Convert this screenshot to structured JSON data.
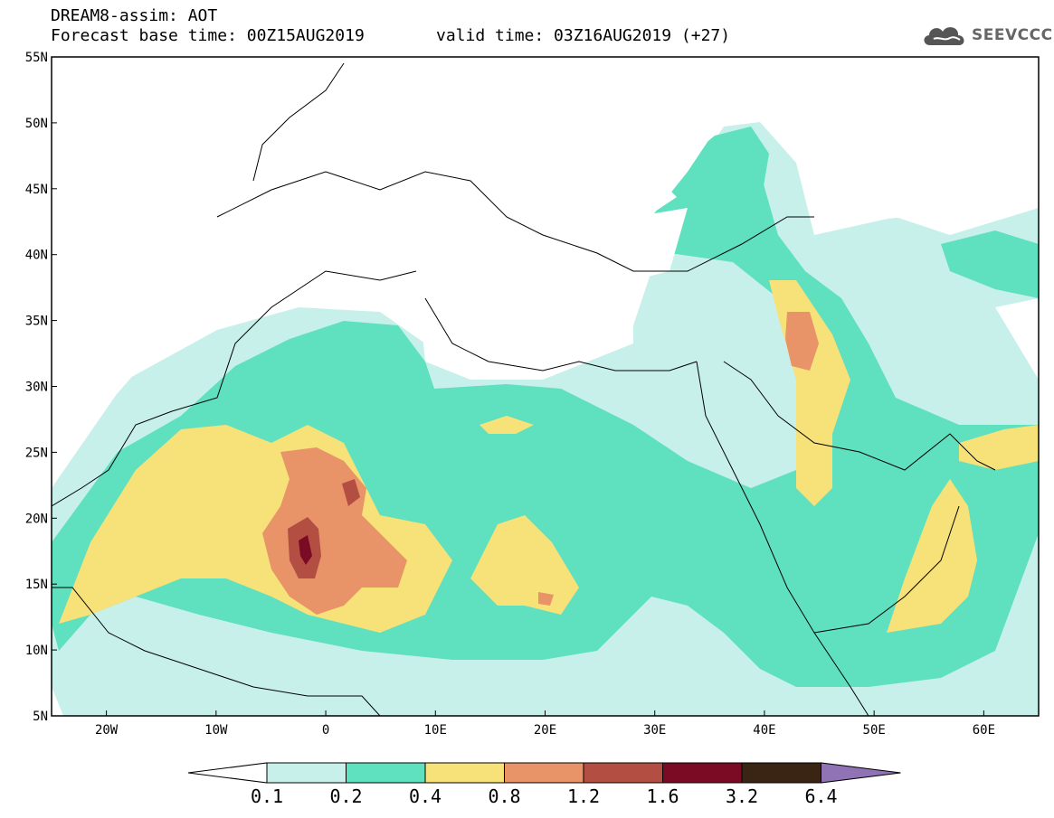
{
  "header": {
    "title_line": "DREAM8-assim: AOT",
    "base_time": "Forecast base time: 00Z15AUG2019",
    "valid_time": "valid time: 03Z16AUG2019 (+27)"
  },
  "logo": {
    "icon": "cloud-icon",
    "text": "SEEVCCC"
  },
  "map": {
    "lon_range": [
      -25,
      65
    ],
    "lat_range": [
      5,
      55
    ],
    "lat_ticks": [
      "5N",
      "10N",
      "15N",
      "20N",
      "25N",
      "30N",
      "35N",
      "40N",
      "45N",
      "50N",
      "55N"
    ],
    "lon_ticks": [
      "20W",
      "10W",
      "0",
      "10E",
      "20E",
      "30E",
      "40E",
      "50E",
      "60E"
    ],
    "lon_tick_values": [
      -20,
      -10,
      0,
      10,
      20,
      30,
      40,
      50,
      60
    ],
    "lat_tick_values": [
      5,
      10,
      15,
      20,
      25,
      30,
      35,
      40,
      45,
      50,
      55
    ]
  },
  "colorbar": {
    "labels": [
      "0.1",
      "0.2",
      "0.4",
      "0.8",
      "1.2",
      "1.6",
      "3.2",
      "6.4"
    ],
    "colors": [
      "#c8f0ea",
      "#5fe0be",
      "#f7e27a",
      "#e89368",
      "#b34e42",
      "#7b0a25",
      "#3a2414",
      "#9073b4"
    ]
  }
}
